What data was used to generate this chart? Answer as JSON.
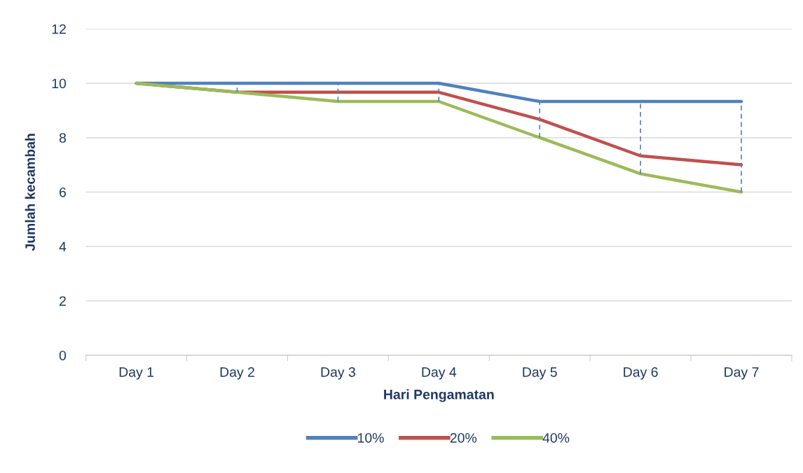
{
  "chart_data": {
    "type": "line",
    "xlabel": "Hari Pengamatan",
    "ylabel": "Jumlah kecambah",
    "categories": [
      "Day 1",
      "Day 2",
      "Day 3",
      "Day 4",
      "Day 5",
      "Day 6",
      "Day 7"
    ],
    "series": [
      {
        "name": "10%",
        "color": "#4f81bd",
        "values": [
          10,
          10,
          10,
          10,
          9.33,
          9.33,
          9.33
        ],
        "errors": [
          null,
          [
            9.67,
            10
          ],
          [
            9.33,
            10
          ],
          [
            9.33,
            10
          ],
          [
            8,
            9.33
          ],
          [
            6.67,
            9.33
          ],
          [
            6,
            9.33
          ]
        ]
      },
      {
        "name": "20%",
        "color": "#c0504d",
        "values": [
          10,
          9.67,
          9.67,
          9.67,
          8.67,
          7.33,
          7
        ]
      },
      {
        "name": "40%",
        "color": "#9bbb59",
        "values": [
          10,
          9.67,
          9.33,
          9.33,
          8,
          6.67,
          6
        ]
      }
    ],
    "ylim": [
      0,
      12
    ],
    "yticks": [
      0,
      2,
      4,
      6,
      8,
      10,
      12
    ],
    "grid": "y",
    "legend": "bottom",
    "marker": "none",
    "line_style": "solid"
  }
}
